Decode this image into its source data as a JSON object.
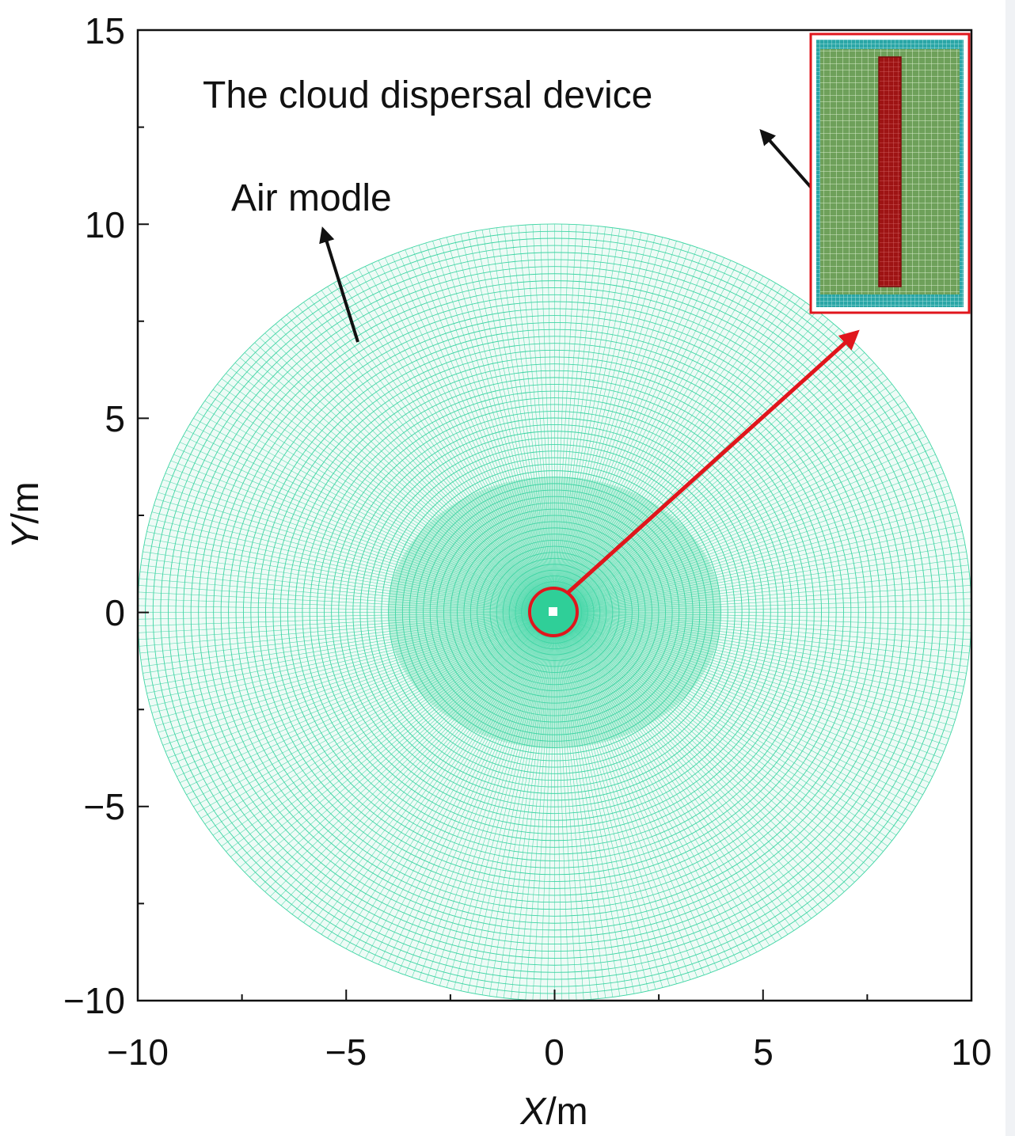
{
  "figure": {
    "x_axis": {
      "title_var": "X",
      "title_unit": "/m",
      "range": [
        -10,
        10
      ],
      "ticks": [
        "−10",
        "−5",
        "0",
        "5",
        "10"
      ]
    },
    "y_axis": {
      "title_var": "Y",
      "title_unit": "/m",
      "range": [
        -10,
        15
      ],
      "ticks": [
        "−10",
        "−5",
        "0",
        "5",
        "10",
        "15"
      ]
    },
    "annotations": {
      "air_model": "Air modle",
      "device": "The cloud dispersal device"
    },
    "mesh": {
      "outer_radius": 10,
      "dense_radius_x": 4,
      "dense_radius_y": 3.5,
      "color": "#3fd5a4",
      "dense_color": "#7fe0c0"
    },
    "colors": {
      "highlight": "#e0161c",
      "inset_fill": "#6ea05a",
      "inset_border": "#2aa6a6",
      "device_core": "#9e1414",
      "arrow": "#111111"
    }
  }
}
